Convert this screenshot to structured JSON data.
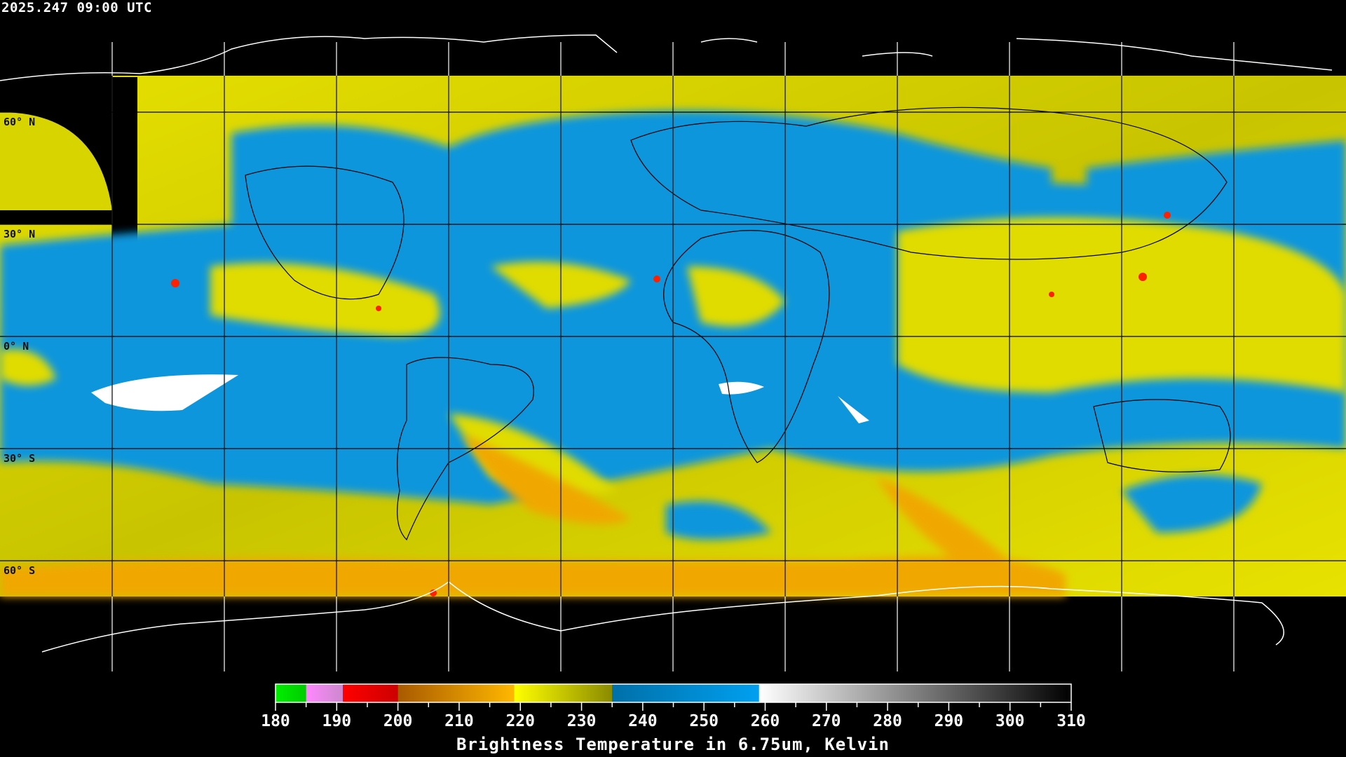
{
  "timestamp": "2025.247 09:00 UTC",
  "latitude_labels": [
    "60° N",
    "30° N",
    "0° N",
    "30° S",
    "60° S"
  ],
  "colorbar": {
    "title": "Brightness Temperature in 6.75um, Kelvin",
    "min": 180,
    "max": 310,
    "tick_labels": [
      "180",
      "190",
      "200",
      "210",
      "220",
      "230",
      "240",
      "250",
      "260",
      "270",
      "280",
      "290",
      "300",
      "310"
    ],
    "segments": [
      {
        "from": 180,
        "to": 185,
        "colors": [
          "#00ee00",
          "#00cc00"
        ]
      },
      {
        "from": 185,
        "to": 191,
        "colors": [
          "#ff88ff",
          "#cc88cc"
        ]
      },
      {
        "from": 191,
        "to": 200,
        "colors": [
          "#ff0000",
          "#cc0000"
        ]
      },
      {
        "from": 200,
        "to": 219,
        "colors": [
          "#a85a00",
          "#ffb800"
        ]
      },
      {
        "from": 219,
        "to": 235,
        "colors": [
          "#ffff00",
          "#8a8a00"
        ]
      },
      {
        "from": 235,
        "to": 259,
        "colors": [
          "#0070a8",
          "#00a0f0"
        ]
      },
      {
        "from": 259,
        "to": 310,
        "colors": [
          "#ffffff",
          "#000000"
        ]
      }
    ]
  },
  "colors": {
    "moist_high_cloud": "#e8e000",
    "dry": "#0a96dc",
    "coastline": "#ffffff",
    "grid": "#000000"
  }
}
